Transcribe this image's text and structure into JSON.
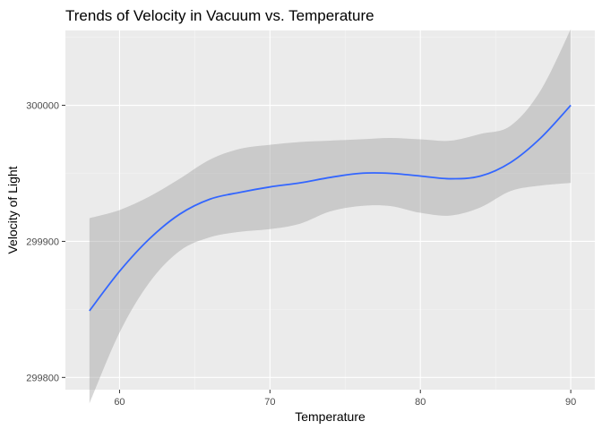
{
  "chart_data": {
    "type": "line",
    "title": "Trends of Velocity in Vacuum vs. Temperature",
    "xlabel": "Temperature",
    "ylabel": "Velocity of Light",
    "xlim": [
      56.4,
      91.6
    ],
    "ylim": [
      299791,
      300055
    ],
    "x_ticks": [
      60,
      70,
      80,
      90
    ],
    "x_tick_labels": [
      "60",
      "70",
      "80",
      "90"
    ],
    "y_ticks": [
      299800,
      299900,
      300000
    ],
    "y_tick_labels": [
      "299800",
      "299900",
      "300000"
    ],
    "x_minor_ticks": [
      55,
      65,
      75,
      85
    ],
    "y_minor_ticks": [
      299750,
      299850,
      299950,
      300050
    ],
    "grid": true,
    "series": [
      {
        "type": "smooth",
        "color": "#3366FF",
        "x": [
          58,
          60,
          62,
          64,
          66,
          68,
          70,
          72,
          74,
          76,
          78,
          80,
          82,
          84,
          86,
          88,
          90
        ],
        "y": [
          299849,
          299878,
          299902,
          299920,
          299931,
          299936,
          299940,
          299943,
          299947,
          299950,
          299950,
          299948,
          299946,
          299948,
          299958,
          299976,
          300000
        ],
        "ci_lower": [
          299781,
          299833,
          299870,
          299893,
          299903,
          299907,
          299909,
          299913,
          299922,
          299926,
          299926,
          299921,
          299919,
          299925,
          299937,
          299941,
          299943
        ],
        "ci_upper": [
          299917,
          299923,
          299933,
          299946,
          299960,
          299968,
          299971,
          299973,
          299974,
          299975,
          299976,
          299975,
          299974,
          299979,
          299985,
          300011,
          300056
        ],
        "ci_fill": "#999999"
      }
    ],
    "colors": {
      "panel_background": "#EBEBEB",
      "grid_major": "#FFFFFF",
      "line": "#3366FF",
      "ribbon": "#999999"
    }
  }
}
